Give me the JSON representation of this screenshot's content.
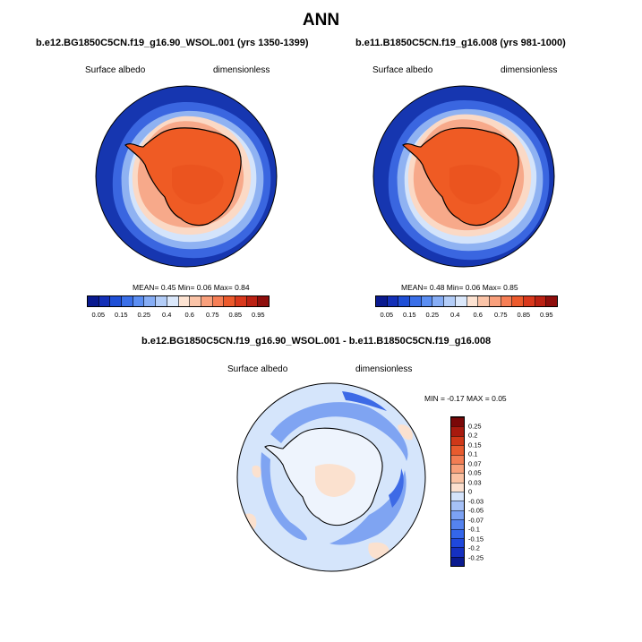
{
  "title": "ANN",
  "panels": [
    {
      "title": "b.e12.BG1850C5CN.f19_g16.90_WSOL.001 (yrs 1350-1399)",
      "variable": "Surface albedo",
      "units": "dimensionless",
      "stats": "MEAN=  0.45  Min=  0.06  Max=  0.84",
      "mean": 0.45,
      "min": 0.06,
      "max": 0.84
    },
    {
      "title": "b.e11.B1850C5CN.f19_g16.008 (yrs 981-1000)",
      "variable": "Surface albedo",
      "units": "dimensionless",
      "stats": "MEAN=  0.48  Min=  0.06  Max=  0.85",
      "mean": 0.48,
      "min": 0.06,
      "max": 0.85
    }
  ],
  "diff": {
    "title": "b.e12.BG1850C5CN.f19_g16.90_WSOL.001 - b.e11.B1850C5CN.f19_g16.008",
    "variable": "Surface albedo",
    "units": "dimensionless",
    "stats": "MIN =  -0.17 MAX =   0.05",
    "min": -0.17,
    "max": 0.05
  },
  "colorbar_main": {
    "labels": [
      "0.05",
      "0.15",
      "0.25",
      "0.4",
      "0.6",
      "0.75",
      "0.85",
      "0.95"
    ],
    "colors": [
      "#0a1a8f",
      "#1430b8",
      "#1f4fd6",
      "#3a6fe8",
      "#5b8ef2",
      "#86adf5",
      "#b3cdf8",
      "#dbe8fb",
      "#fde3d2",
      "#fbc4a8",
      "#f9a07c",
      "#f67e55",
      "#ec5a2c",
      "#d9381c",
      "#bb2113",
      "#8e0e0c"
    ]
  },
  "colorbar_diff": {
    "labels": [
      "-0.25",
      "-0.2",
      "-0.15",
      "-0.1",
      "-0.07",
      "-0.05",
      "-0.03",
      "0",
      "0.03",
      "0.05",
      "0.07",
      "0.1",
      "0.15",
      "0.2",
      "0.25"
    ],
    "colors": [
      "#0a1a8f",
      "#1530c0",
      "#1f48dc",
      "#3466ea",
      "#5583ef",
      "#7ca2f3",
      "#a6c1f7",
      "#d4e3fb",
      "#fbe0cf",
      "#fac2a3",
      "#f8a07a",
      "#f37d53",
      "#e85b2e",
      "#cf3818",
      "#a71a0e",
      "#7a0808"
    ]
  },
  "map_colors": {
    "ocean_outer": "#1636b0",
    "ocean_mid": "#3a66e0",
    "ocean_light": "#8fb2f2",
    "seaice_pale": "#d4e4fb",
    "seaice_peach": "#fbd9c5",
    "seaice_salmon": "#f7a98a",
    "land_orange": "#ef5b24",
    "land_deep": "#e8501c",
    "diff_base": "#d5e5fb",
    "diff_neg": "#7fa4f2",
    "diff_neg_strong": "#3d6ae6",
    "diff_pos": "#fbe1cf"
  }
}
